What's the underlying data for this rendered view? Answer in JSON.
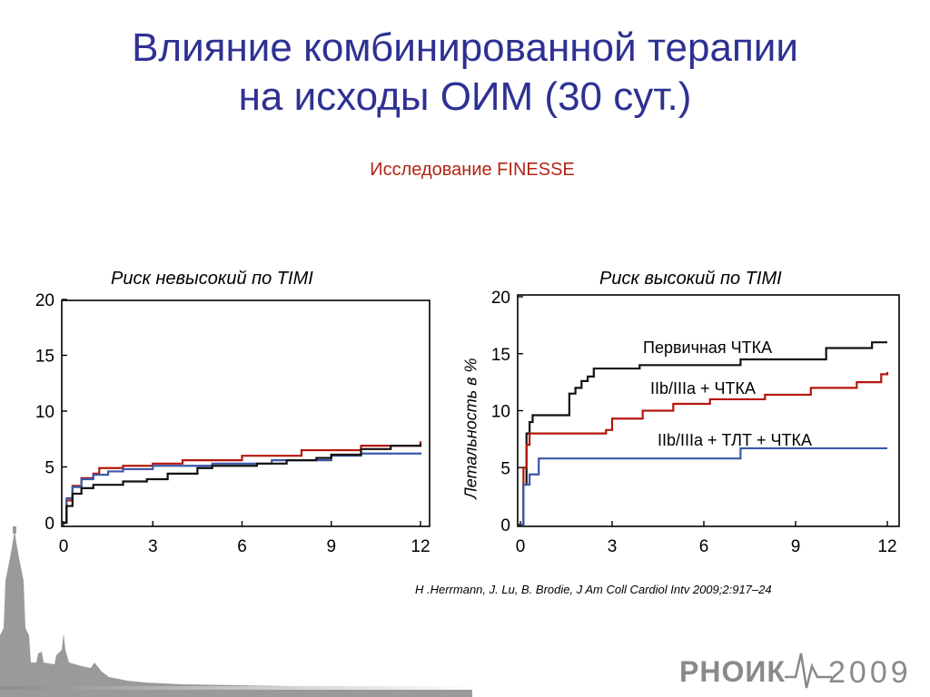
{
  "slide": {
    "title_line1": "Влияние комбинированной терапии",
    "title_line2": "на исходы ОИМ (30 сут.)",
    "subtitle": "Исследование FINESSE",
    "citation": "H .Herrmann, J. Lu, B. Brodie, J Am Coll Cardiol Intv 2009;2:917–24",
    "logo_name": "РНОИК",
    "logo_year": "2009"
  },
  "colors": {
    "title": "#2e3192",
    "subtitle": "#b22416",
    "black_series": "#111111",
    "red_series": "#b5160d",
    "blue_series": "#3a58a8"
  },
  "chart_data": [
    {
      "type": "line",
      "title": "Риск невысокий  по TIMI",
      "xlabel": "",
      "ylabel": "",
      "xlim": [
        0,
        12
      ],
      "ylim": [
        0,
        20
      ],
      "x_ticks": [
        "0",
        "3",
        "6",
        "9",
        "12"
      ],
      "y_ticks": [
        "0",
        "5",
        "10",
        "15",
        "20"
      ],
      "grid": false,
      "series": [
        {
          "color": "#b5160d",
          "x": [
            0,
            0.1,
            0.3,
            0.6,
            1.0,
            1.2,
            2.0,
            3.0,
            4.0,
            6.0,
            8.0,
            10.0,
            12.0
          ],
          "y": [
            0,
            2.0,
            3.3,
            4.0,
            4.4,
            4.9,
            5.1,
            5.3,
            5.6,
            6.0,
            6.5,
            6.9,
            7.3
          ]
        },
        {
          "color": "#3a58a8",
          "x": [
            0,
            0.1,
            0.3,
            0.6,
            1.0,
            1.5,
            2.0,
            3.0,
            5.0,
            7.0,
            9.0,
            10.0,
            12.0
          ],
          "y": [
            0,
            2.2,
            3.2,
            3.9,
            4.3,
            4.6,
            4.8,
            5.1,
            5.3,
            5.6,
            6.0,
            6.2,
            6.3
          ]
        },
        {
          "color": "#111111",
          "x": [
            0,
            0.1,
            0.3,
            0.6,
            1.0,
            2.0,
            2.8,
            3.5,
            4.5,
            5.0,
            6.5,
            7.5,
            8.5,
            9.0,
            10.0,
            11.0,
            12.0
          ],
          "y": [
            0,
            1.5,
            2.6,
            3.1,
            3.4,
            3.7,
            3.9,
            4.4,
            4.9,
            5.1,
            5.3,
            5.6,
            5.8,
            6.1,
            6.6,
            6.9,
            7.1
          ]
        }
      ]
    },
    {
      "type": "line",
      "title": "Риск  высокий  по TIMI",
      "xlabel": "",
      "ylabel": "Летальность в %",
      "xlim": [
        0,
        12
      ],
      "ylim": [
        0,
        20
      ],
      "x_ticks": [
        "0",
        "3",
        "6",
        "9",
        "12"
      ],
      "y_ticks": [
        "0",
        "5",
        "10",
        "15",
        "20"
      ],
      "grid": false,
      "annotations": [
        "Первичная ЧТКА",
        "IIb/IIIa + ЧТКА",
        "IIb/IIIa + ТЛТ + ЧТКА"
      ],
      "series": [
        {
          "name": "Первичная ЧТКА",
          "color": "#111111",
          "x": [
            0,
            0.1,
            0.2,
            0.3,
            0.4,
            1.6,
            1.8,
            2.0,
            2.2,
            2.4,
            3.9,
            7.2,
            10.0,
            11.5,
            12.0
          ],
          "y": [
            0,
            3.5,
            8.0,
            9.0,
            9.6,
            11.5,
            12.0,
            12.6,
            13.0,
            13.7,
            14.0,
            14.5,
            15.5,
            16.0,
            16.0
          ]
        },
        {
          "name": "IIb/IIIa + ЧТКА",
          "color": "#b5160d",
          "x": [
            0,
            0.1,
            0.2,
            0.3,
            2.8,
            3.0,
            4.0,
            5.0,
            6.2,
            8.0,
            9.5,
            11.0,
            11.8,
            12.0
          ],
          "y": [
            0,
            5.0,
            7.0,
            8.0,
            8.3,
            9.3,
            10.0,
            10.6,
            11.0,
            11.4,
            12.0,
            12.5,
            13.2,
            13.4
          ]
        },
        {
          "name": "IIb/IIIa + ТЛТ + ЧТКА",
          "color": "#3a58a8",
          "x": [
            0,
            0.1,
            0.3,
            0.6,
            7.2,
            12.0
          ],
          "y": [
            0,
            3.5,
            4.4,
            5.8,
            6.7,
            6.7
          ]
        }
      ]
    }
  ]
}
